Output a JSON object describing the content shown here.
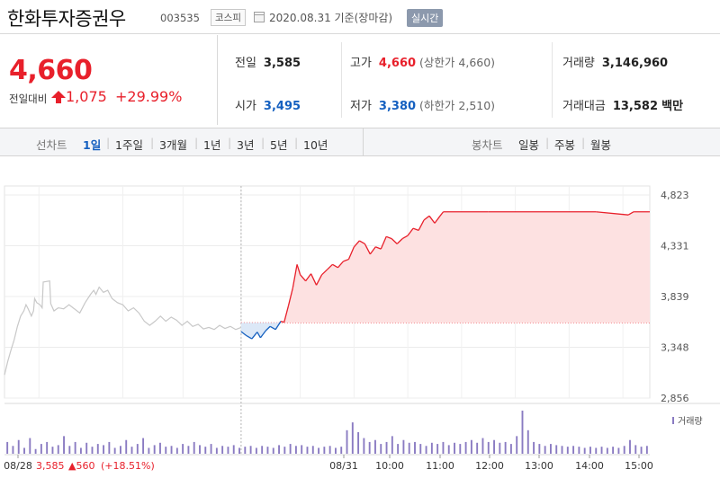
{
  "header": {
    "stock_name": "한화투자증권우",
    "code": "003535",
    "market": "코스피",
    "date_text": "2020.08.31 기준(장마감)",
    "realtime_label": "실시간"
  },
  "price": {
    "current": "4,660",
    "change_label": "전일대비",
    "change": "1,075",
    "change_pct": "+29.99%"
  },
  "stats": {
    "prev_close_label": "전일",
    "prev_close": "3,585",
    "high_label": "고가",
    "high": "4,660",
    "upper_limit": "(상한가 4,660)",
    "volume_label": "거래량",
    "volume": "3,146,960",
    "open_label": "시가",
    "open": "3,495",
    "low_label": "저가",
    "low": "3,380",
    "lower_limit": "(하한가 2,510)",
    "value_label": "거래대금",
    "value": "13,582",
    "value_unit": "백만"
  },
  "tabs": {
    "line_label": "선차트",
    "line": [
      "1일",
      "1주일",
      "3개월",
      "1년",
      "3년",
      "5년",
      "10년"
    ],
    "active": "1일",
    "candle_label": "봉차트",
    "candle": [
      "일봉",
      "주봉",
      "월봉"
    ]
  },
  "colors": {
    "up": "#e8202b",
    "down": "#1560c0",
    "prev_day_line": "#c8c8c8",
    "up_fill": "#fde1e1",
    "down_fill": "#dce8f7",
    "volume_bar": "#8a7bc2"
  },
  "chart_data": {
    "type": "line",
    "y_axis_ticks": [
      "4,823",
      "4,331",
      "3,839",
      "3,348",
      "2,856"
    ],
    "ylim": [
      2856,
      4823
    ],
    "baseline": 3585,
    "x_labels": [
      "08/28",
      "08/31",
      "10:00",
      "11:00",
      "12:00",
      "13:00",
      "14:00",
      "15:00"
    ],
    "prev_day_summary": {
      "date": "08/28",
      "close": "3,585",
      "change": "560",
      "change_pct": "(+18.51%)"
    },
    "volume_legend": "거래량",
    "series": [
      {
        "name": "08/28",
        "points": [
          [
            0,
            3080
          ],
          [
            0.03,
            3210
          ],
          [
            0.06,
            3320
          ],
          [
            0.09,
            3420
          ],
          [
            0.12,
            3550
          ],
          [
            0.15,
            3650
          ],
          [
            0.18,
            3700
          ],
          [
            0.2,
            3760
          ],
          [
            0.22,
            3720
          ],
          [
            0.25,
            3650
          ],
          [
            0.27,
            3700
          ],
          [
            0.28,
            3820
          ],
          [
            0.3,
            3780
          ],
          [
            0.33,
            3760
          ],
          [
            0.35,
            3730
          ],
          [
            0.36,
            3980
          ],
          [
            0.42,
            3990
          ],
          [
            0.43,
            3770
          ],
          [
            0.46,
            3700
          ],
          [
            0.5,
            3730
          ],
          [
            0.55,
            3720
          ],
          [
            0.6,
            3760
          ],
          [
            0.65,
            3720
          ],
          [
            0.7,
            3680
          ],
          [
            0.75,
            3780
          ],
          [
            0.8,
            3860
          ],
          [
            0.83,
            3900
          ],
          [
            0.85,
            3860
          ],
          [
            0.88,
            3930
          ],
          [
            0.92,
            3880
          ],
          [
            0.96,
            3900
          ],
          [
            1.0,
            3820
          ],
          [
            1.05,
            3780
          ],
          [
            1.1,
            3760
          ],
          [
            1.15,
            3700
          ],
          [
            1.2,
            3730
          ],
          [
            1.25,
            3680
          ],
          [
            1.3,
            3600
          ],
          [
            1.35,
            3560
          ],
          [
            1.4,
            3600
          ],
          [
            1.45,
            3650
          ],
          [
            1.5,
            3600
          ],
          [
            1.55,
            3640
          ],
          [
            1.6,
            3610
          ],
          [
            1.65,
            3560
          ],
          [
            1.7,
            3600
          ],
          [
            1.75,
            3550
          ],
          [
            1.8,
            3570
          ],
          [
            1.85,
            3525
          ],
          [
            1.9,
            3540
          ],
          [
            1.95,
            3520
          ],
          [
            2.0,
            3560
          ],
          [
            2.05,
            3530
          ],
          [
            2.1,
            3550
          ],
          [
            2.15,
            3520
          ],
          [
            2.2,
            3540
          ]
        ]
      },
      {
        "name": "08/31",
        "points": [
          [
            2.2,
            3500
          ],
          [
            2.25,
            3460
          ],
          [
            2.3,
            3430
          ],
          [
            2.35,
            3495
          ],
          [
            2.38,
            3440
          ],
          [
            2.43,
            3510
          ],
          [
            2.47,
            3550
          ],
          [
            2.52,
            3520
          ],
          [
            2.57,
            3600
          ],
          [
            2.6,
            3590
          ],
          [
            2.64,
            3750
          ],
          [
            2.68,
            3920
          ],
          [
            2.72,
            4150
          ],
          [
            2.75,
            4050
          ],
          [
            2.8,
            3990
          ],
          [
            2.85,
            4060
          ],
          [
            2.9,
            3950
          ],
          [
            2.95,
            4050
          ],
          [
            3.0,
            4100
          ],
          [
            3.05,
            4150
          ],
          [
            3.1,
            4120
          ],
          [
            3.15,
            4180
          ],
          [
            3.2,
            4200
          ],
          [
            3.25,
            4320
          ],
          [
            3.3,
            4380
          ],
          [
            3.35,
            4350
          ],
          [
            3.4,
            4250
          ],
          [
            3.45,
            4320
          ],
          [
            3.5,
            4300
          ],
          [
            3.55,
            4420
          ],
          [
            3.6,
            4400
          ],
          [
            3.65,
            4350
          ],
          [
            3.7,
            4400
          ],
          [
            3.75,
            4430
          ],
          [
            3.8,
            4500
          ],
          [
            3.85,
            4480
          ],
          [
            3.9,
            4580
          ],
          [
            3.95,
            4620
          ],
          [
            4.0,
            4550
          ],
          [
            4.05,
            4620
          ],
          [
            4.08,
            4660
          ],
          [
            4.5,
            4660
          ],
          [
            5.0,
            4660
          ],
          [
            5.5,
            4660
          ],
          [
            5.8,
            4630
          ],
          [
            5.85,
            4660
          ],
          [
            6.0,
            4660
          ]
        ]
      }
    ],
    "volume": [
      30,
      20,
      35,
      15,
      40,
      12,
      25,
      30,
      18,
      22,
      45,
      20,
      30,
      15,
      28,
      18,
      25,
      22,
      30,
      15,
      20,
      35,
      18,
      25,
      40,
      15,
      22,
      28,
      18,
      20,
      15,
      25,
      20,
      30,
      22,
      18,
      25,
      15,
      20,
      18,
      22,
      15,
      18,
      20,
      15,
      20,
      18,
      15,
      22,
      18,
      25,
      20,
      22,
      18,
      20,
      15,
      18,
      20,
      15,
      18,
      60,
      80,
      55,
      40,
      30,
      35,
      25,
      30,
      45,
      25,
      35,
      28,
      30,
      25,
      20,
      28,
      25,
      30,
      22,
      28,
      25,
      30,
      35,
      28,
      40,
      30,
      35,
      28,
      30,
      25,
      45,
      110,
      60,
      30,
      25,
      20,
      25,
      22,
      20,
      18,
      20,
      18,
      15,
      18,
      15,
      18,
      15,
      18,
      15,
      20,
      35,
      22,
      18,
      20
    ]
  }
}
